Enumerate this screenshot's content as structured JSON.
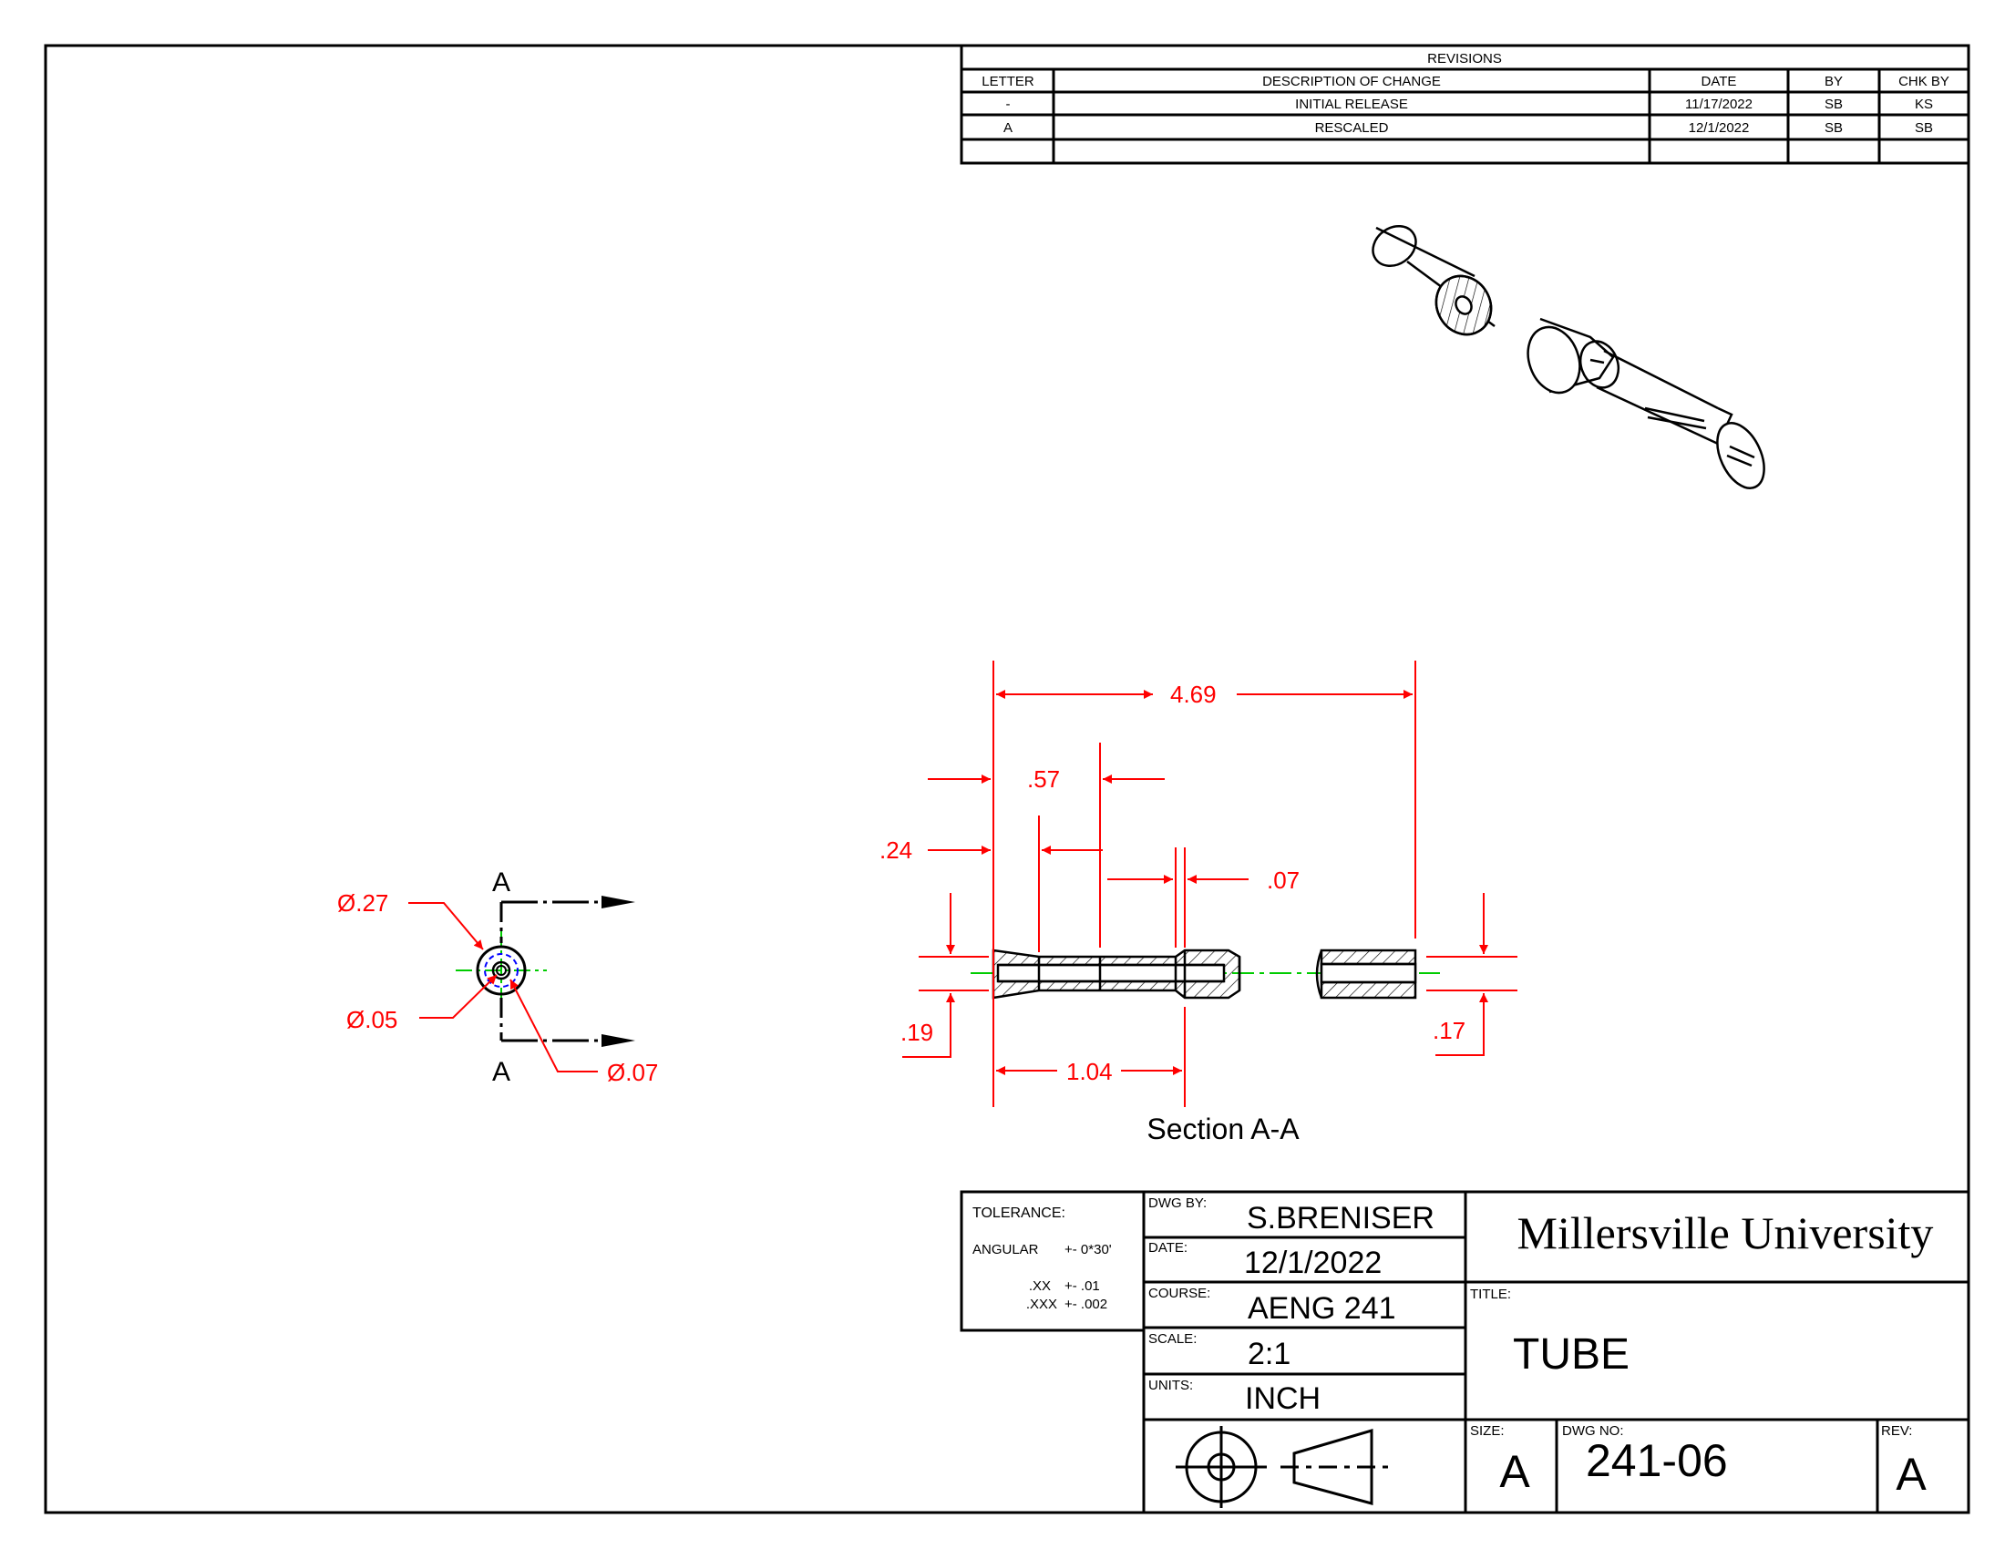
{
  "revisions": {
    "title": "REVISIONS",
    "headers": [
      "LETTER",
      "DESCRIPTION OF CHANGE",
      "DATE",
      "BY",
      "CHK BY"
    ],
    "rows": [
      [
        "-",
        "INITIAL RELEASE",
        "11/17/2022",
        "SB",
        "KS"
      ],
      [
        "A",
        "RESCALED",
        "12/1/2022",
        "SB",
        "SB"
      ]
    ]
  },
  "front_view": {
    "label_top": "A",
    "label_bottom": "A",
    "dim_outer": "Ø.27",
    "dim_inner": "Ø.05",
    "dim_mid": "Ø.07"
  },
  "section_view": {
    "caption": "Section A-A",
    "dim_overall": "4.69",
    "dim_57": ".57",
    "dim_24": ".24",
    "dim_07": ".07",
    "dim_19": ".19",
    "dim_104": "1.04",
    "dim_17": ".17"
  },
  "title_block": {
    "tolerance_label": "TOLERANCE:",
    "angular_label": "ANGULAR",
    "angular_value": "+-  0*30'",
    "xx_label": ".XX",
    "xx_value": "+- .01",
    "xxx_label": ".XXX",
    "xxx_value": "+- .002",
    "dwg_by_label": "DWG BY:",
    "dwg_by": "S.BRENISER",
    "date_label": "DATE:",
    "date": "12/1/2022",
    "course_label": "COURSE:",
    "course": "AENG 241",
    "scale_label": "SCALE:",
    "scale": "2:1",
    "units_label": "UNITS:",
    "units": "INCH",
    "university": "Millersville University",
    "title_label": "TITLE:",
    "title": "TUBE",
    "size_label": "SIZE:",
    "size": "A",
    "dwg_no_label": "DWG NO:",
    "dwg_no": "241-06",
    "rev_label": "REV:",
    "rev": "A"
  },
  "colors": {
    "dimension": "#ff0000",
    "centerline": "#00cc00",
    "hidden": "#0000ff",
    "line": "#000000"
  }
}
